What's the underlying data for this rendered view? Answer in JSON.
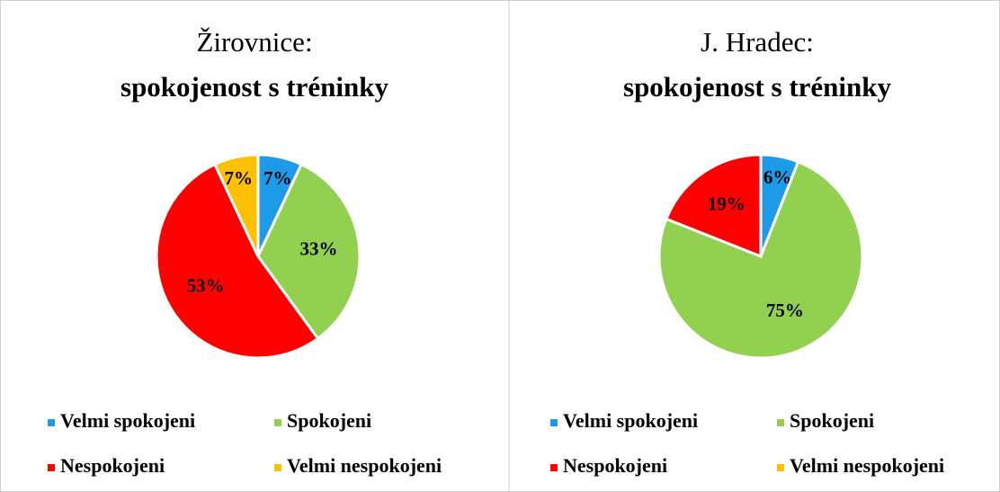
{
  "chart_data": [
    {
      "type": "pie",
      "title": "Žirovnice:",
      "subtitle": "spokojenost s tréninky",
      "categories": [
        "Velmi spokojeni",
        "Spokojeni",
        "Nespokojeni",
        "Velmi nespokojeni"
      ],
      "values": [
        7,
        33,
        53,
        7
      ],
      "value_labels": [
        "7%",
        "33%",
        "53%",
        "7%"
      ],
      "colors": [
        "#1e9be8",
        "#92d050",
        "#ff0000",
        "#ffc000"
      ],
      "legend": "bottom"
    },
    {
      "type": "pie",
      "title": "J. Hradec:",
      "subtitle": "spokojenost s tréninky",
      "categories": [
        "Velmi spokojeni",
        "Spokojeni",
        "Nespokojeni",
        "Velmi nespokojeni"
      ],
      "values": [
        6,
        75,
        19,
        0
      ],
      "value_labels": [
        "6%",
        "75%",
        "19%",
        null
      ],
      "colors": [
        "#1e9be8",
        "#92d050",
        "#ff0000",
        "#ffc000"
      ],
      "legend": "bottom"
    }
  ]
}
